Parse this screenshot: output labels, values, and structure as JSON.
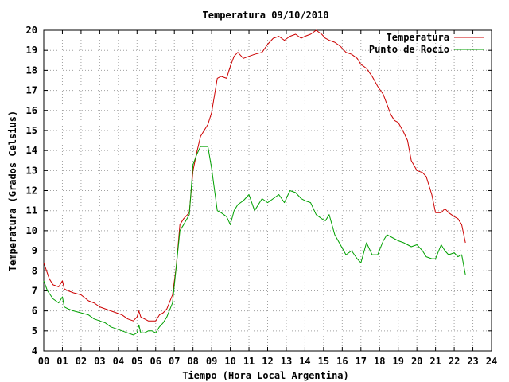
{
  "chart_data": {
    "type": "line",
    "title": "Temperatura 09/10/2010",
    "xlabel": "Tiempo (Hora Local Argentina)",
    "ylabel": "Temperatura (Grados Celsius)",
    "xlim": [
      0,
      24
    ],
    "ylim": [
      4,
      20
    ],
    "grid": true,
    "legend_position": "top-right",
    "x_tick_labels": [
      "00",
      "01",
      "02",
      "03",
      "04",
      "05",
      "06",
      "07",
      "08",
      "09",
      "10",
      "11",
      "12",
      "13",
      "14",
      "15",
      "16",
      "17",
      "18",
      "19",
      "20",
      "21",
      "22",
      "23",
      "24"
    ],
    "y_tick_labels": [
      "4",
      "5",
      "6",
      "7",
      "8",
      "9",
      "10",
      "11",
      "12",
      "13",
      "14",
      "15",
      "16",
      "17",
      "18",
      "19",
      "20"
    ],
    "series": [
      {
        "name": "Temperatura",
        "color": "#cc0000",
        "x": [
          0,
          0.3,
          0.5,
          0.8,
          1.0,
          1.1,
          1.3,
          1.6,
          2.0,
          2.4,
          2.7,
          3.0,
          3.3,
          3.6,
          3.9,
          4.2,
          4.5,
          4.8,
          5.0,
          5.1,
          5.2,
          5.4,
          5.6,
          5.8,
          6.0,
          6.2,
          6.4,
          6.6,
          6.9,
          7.1,
          7.3,
          7.5,
          7.8,
          8.0,
          8.2,
          8.4,
          8.6,
          8.8,
          9.0,
          9.3,
          9.5,
          9.8,
          10.0,
          10.2,
          10.4,
          10.7,
          11.0,
          11.3,
          11.7,
          12.0,
          12.3,
          12.6,
          12.9,
          13.2,
          13.5,
          13.8,
          14.0,
          14.3,
          14.6,
          14.9,
          15.1,
          15.3,
          15.6,
          15.9,
          16.2,
          16.5,
          16.8,
          17.0,
          17.3,
          17.6,
          17.9,
          18.2,
          18.4,
          18.6,
          18.8,
          19.0,
          19.3,
          19.5,
          19.7,
          20.0,
          20.3,
          20.5,
          20.8,
          21.0,
          21.3,
          21.5,
          21.7,
          22.0,
          22.2,
          22.4,
          22.6
        ],
        "values": [
          8.4,
          7.6,
          7.3,
          7.2,
          7.5,
          7.1,
          7.0,
          6.9,
          6.8,
          6.5,
          6.4,
          6.2,
          6.1,
          6.0,
          5.9,
          5.8,
          5.6,
          5.5,
          5.7,
          6.0,
          5.7,
          5.6,
          5.5,
          5.5,
          5.5,
          5.8,
          5.9,
          6.1,
          6.8,
          8.2,
          10.3,
          10.6,
          10.9,
          13.0,
          13.9,
          14.7,
          15.0,
          15.3,
          15.9,
          17.6,
          17.7,
          17.6,
          18.2,
          18.7,
          18.9,
          18.6,
          18.7,
          18.8,
          18.9,
          19.3,
          19.6,
          19.7,
          19.5,
          19.7,
          19.8,
          19.6,
          19.7,
          19.8,
          20.0,
          19.8,
          19.6,
          19.5,
          19.4,
          19.2,
          18.9,
          18.8,
          18.6,
          18.3,
          18.1,
          17.7,
          17.2,
          16.8,
          16.3,
          15.8,
          15.5,
          15.4,
          14.9,
          14.5,
          13.5,
          13.0,
          12.9,
          12.7,
          11.8,
          10.9,
          10.9,
          11.1,
          10.9,
          10.7,
          10.6,
          10.3,
          9.4
        ],
        "visible_points": 91
      },
      {
        "name": "Punto de Rocío",
        "color": "#00a000",
        "x": [
          0,
          0.2,
          0.5,
          0.8,
          1.0,
          1.1,
          1.3,
          1.6,
          2.0,
          2.4,
          2.7,
          3.0,
          3.3,
          3.6,
          3.9,
          4.2,
          4.5,
          4.8,
          5.0,
          5.1,
          5.2,
          5.4,
          5.6,
          5.8,
          6.0,
          6.2,
          6.4,
          6.6,
          6.9,
          7.1,
          7.3,
          7.5,
          7.8,
          8.0,
          8.2,
          8.4,
          8.6,
          8.8,
          9.0,
          9.3,
          9.5,
          9.8,
          10.0,
          10.2,
          10.4,
          10.7,
          11.0,
          11.3,
          11.7,
          12.0,
          12.3,
          12.6,
          12.9,
          13.2,
          13.5,
          13.8,
          14.0,
          14.3,
          14.6,
          14.9,
          15.1,
          15.3,
          15.6,
          15.9,
          16.2,
          16.5,
          16.8,
          17.0,
          17.3,
          17.6,
          17.9,
          18.2,
          18.4,
          18.6,
          18.8,
          19.0,
          19.3,
          19.5,
          19.7,
          20.0,
          20.3,
          20.5,
          20.8,
          21.0,
          21.3,
          21.5,
          21.7,
          22.0,
          22.2,
          22.4,
          22.6
        ],
        "values": [
          7.5,
          7.0,
          6.6,
          6.4,
          6.7,
          6.2,
          6.1,
          6.0,
          5.9,
          5.8,
          5.6,
          5.5,
          5.4,
          5.2,
          5.1,
          5.0,
          4.9,
          4.8,
          4.9,
          5.3,
          4.9,
          4.9,
          5.0,
          5.0,
          4.9,
          5.2,
          5.4,
          5.7,
          6.4,
          8.2,
          10.0,
          10.3,
          10.8,
          13.3,
          13.8,
          14.2,
          14.2,
          14.2,
          13.1,
          11.0,
          10.9,
          10.7,
          10.3,
          11.0,
          11.3,
          11.5,
          11.8,
          11.0,
          11.6,
          11.4,
          11.6,
          11.8,
          11.4,
          12.0,
          11.9,
          11.6,
          11.5,
          11.4,
          10.8,
          10.6,
          10.5,
          10.8,
          9.8,
          9.3,
          8.8,
          9.0,
          8.6,
          8.4,
          9.4,
          8.8,
          8.8,
          9.5,
          9.8,
          9.7,
          9.6,
          9.5,
          9.4,
          9.3,
          9.2,
          9.3,
          9.0,
          8.7,
          8.6,
          8.6,
          9.3,
          9.0,
          8.8,
          8.9,
          8.7,
          8.8,
          7.8
        ],
        "visible_points": 91
      }
    ]
  }
}
